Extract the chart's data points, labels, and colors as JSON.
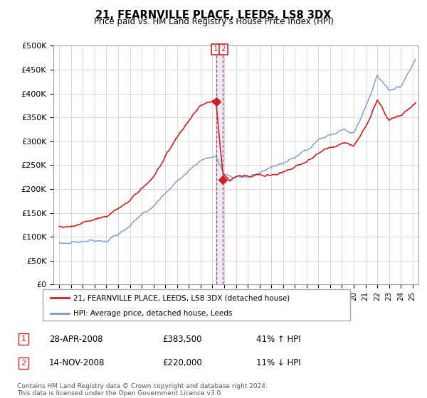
{
  "title": "21, FEARNVILLE PLACE, LEEDS, LS8 3DX",
  "subtitle": "Price paid vs. HM Land Registry's House Price Index (HPI)",
  "ylabel_ticks": [
    "£0",
    "£50K",
    "£100K",
    "£150K",
    "£200K",
    "£250K",
    "£300K",
    "£350K",
    "£400K",
    "£450K",
    "£500K"
  ],
  "ytick_values": [
    0,
    50000,
    100000,
    150000,
    200000,
    250000,
    300000,
    350000,
    400000,
    450000,
    500000
  ],
  "ylim": [
    0,
    500000
  ],
  "xlim_start": 1994.5,
  "xlim_end": 2025.5,
  "hpi_color": "#7799cc",
  "price_color": "#cc2222",
  "vline_color": "#cc2222",
  "annotation_box_color": "#cc2222",
  "shade_color": "#ccddff",
  "sale1_x": 2008.32,
  "sale1_y": 383500,
  "sale2_x": 2008.87,
  "sale2_y": 220000,
  "legend_label_red": "21, FEARNVILLE PLACE, LEEDS, LS8 3DX (detached house)",
  "legend_label_blue": "HPI: Average price, detached house, Leeds",
  "footer": "Contains HM Land Registry data © Crown copyright and database right 2024.\nThis data is licensed under the Open Government Licence v3.0.",
  "background_color": "#ffffff",
  "grid_color": "#cccccc"
}
